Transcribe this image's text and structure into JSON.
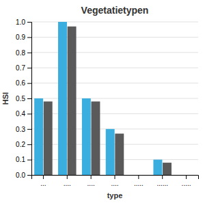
{
  "chart_data": {
    "type": "bar",
    "title": "Vegetatietypen",
    "xlabel": "type",
    "ylabel": "HSI",
    "categories": [
      "...",
      "....",
      "....",
      "....",
      ".....",
      "......",
      "....."
    ],
    "series": [
      {
        "color": "#3baee0",
        "values": [
          0.5,
          1.0,
          0.5,
          0.3,
          0.0,
          0.1,
          0.0
        ]
      },
      {
        "color": "#5a5a5a",
        "values": [
          0.48,
          0.97,
          0.48,
          0.27,
          0.0,
          0.08,
          0.0
        ]
      }
    ],
    "ylim": [
      0.0,
      1.0
    ],
    "yticks": [
      {
        "value": 0.0,
        "label": "0.0"
      },
      0.1,
      0.2,
      0.3,
      0.4,
      0.5,
      0.6,
      0.7,
      0.8,
      0.9,
      {
        "value": 1.0,
        "label": "1.0"
      }
    ],
    "grid": true
  }
}
